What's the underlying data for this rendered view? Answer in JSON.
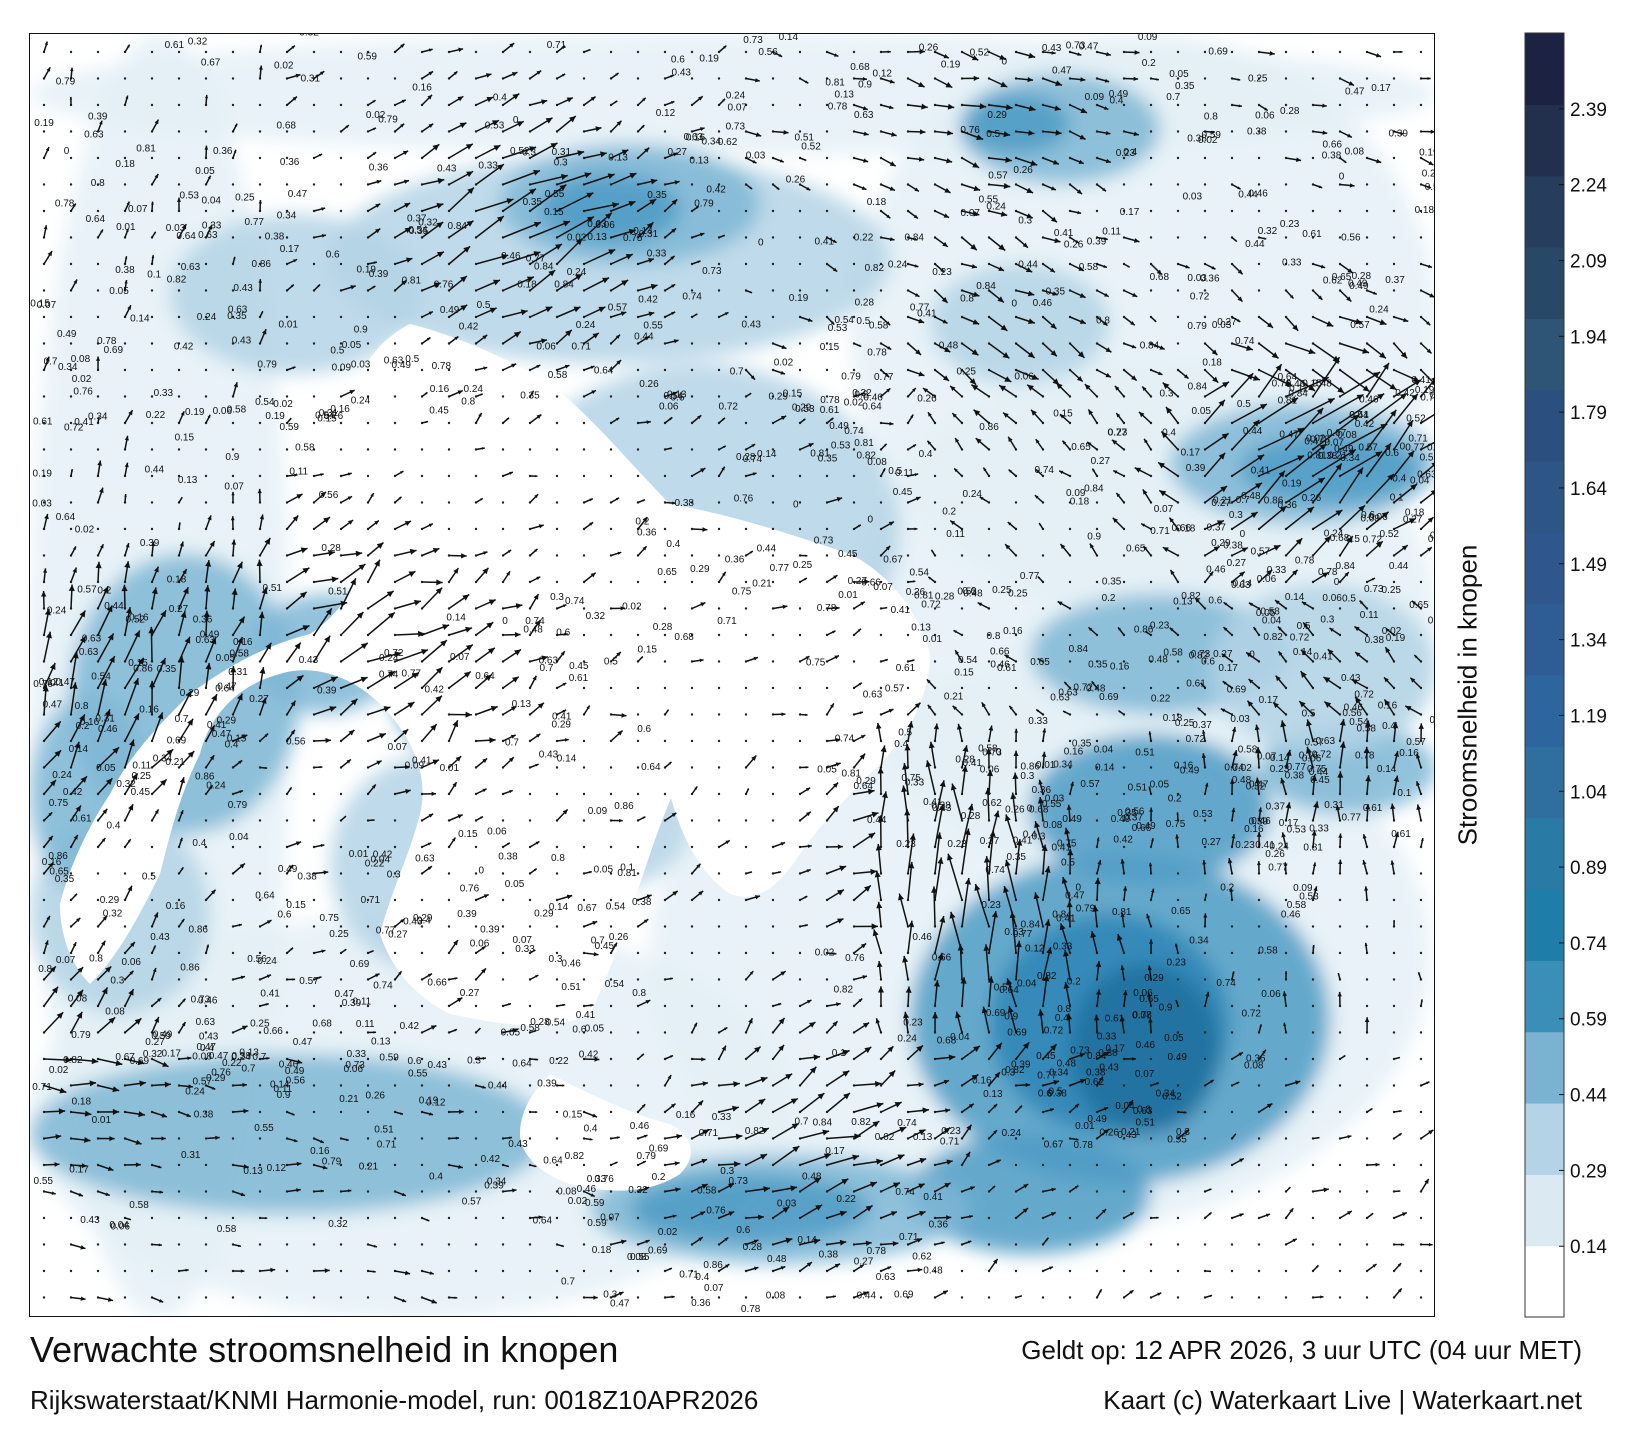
{
  "title": "Verwachte stroomsnelheid in knopen",
  "subtitle": "Rijkswaterstaat/KNMI Harmonie-model, run: 0018Z10APR2026",
  "valid_time": "Geldt op: 12 APR 2026, 3 uur UTC (04 uur MET)",
  "credit": "Kaart (c) Waterkaart Live | Waterkaart.net",
  "colorbar": {
    "label": "Stroomsnelheid in knopen",
    "ticks": [
      "0.14",
      "0.29",
      "0.44",
      "0.59",
      "0.74",
      "0.89",
      "1.04",
      "1.19",
      "1.34",
      "1.49",
      "1.64",
      "1.79",
      "1.94",
      "2.09",
      "2.24",
      "2.39"
    ],
    "colors": [
      "#ffffff",
      "#dbe9f2",
      "#b4d3e6",
      "#7ab3d1",
      "#3a8fb8",
      "#1f7ea9",
      "#2a7aa6",
      "#2f6f9f",
      "#2d659e",
      "#2e5d96",
      "#2f578d",
      "#2d5687",
      "#2b4f7f",
      "#2e5576",
      "#274866",
      "#263d5e",
      "#22304d",
      "#1c2241"
    ],
    "max": 2.54
  },
  "map": {
    "water_color": "#ffffff",
    "current_colors": [
      "#e4f0f7",
      "#b4d3e6",
      "#7fb7d6",
      "#4f9cc5",
      "#2d86b6",
      "#1f6f9c"
    ],
    "arrow_color": "#111111",
    "speed_labels": [
      "0.16",
      "0.22",
      "0.3",
      "0.15",
      "0.14",
      "0.1",
      "0.13",
      "0.12",
      "0.11",
      "0.09",
      "0.06",
      "0.08",
      "0.07",
      "0.05",
      "0.04",
      "0.03",
      "0.02",
      "0.01",
      "0",
      "0.19",
      "0.18",
      "0.17",
      "0.2",
      "0.21",
      "0.23",
      "0.24",
      "0.25",
      "0.26",
      "0.27",
      "0.28",
      "0.29",
      "0.31",
      "0.32",
      "0.33",
      "0.34",
      "0.35",
      "0.36",
      "0.37",
      "0.38",
      "0.39",
      "0.4",
      "0.41",
      "0.42",
      "0.43",
      "0.44",
      "0.45",
      "0.46",
      "0.47",
      "0.48",
      "0.49",
      "0.5",
      "0.51",
      "0.52",
      "0.53",
      "0.54",
      "0.55",
      "0.56",
      "0.57",
      "0.58",
      "0.59",
      "0.6",
      "0.61",
      "0.62",
      "0.63",
      "0.64",
      "0.65",
      "0.66",
      "0.67",
      "0.68",
      "0.69",
      "0.7",
      "0.71",
      "0.72",
      "0.73",
      "0.74",
      "0.75",
      "0.76",
      "0.77",
      "0.78",
      "0.79",
      "0.8",
      "0.81",
      "0.82",
      "0.84",
      "0.86",
      "0.9"
    ]
  }
}
